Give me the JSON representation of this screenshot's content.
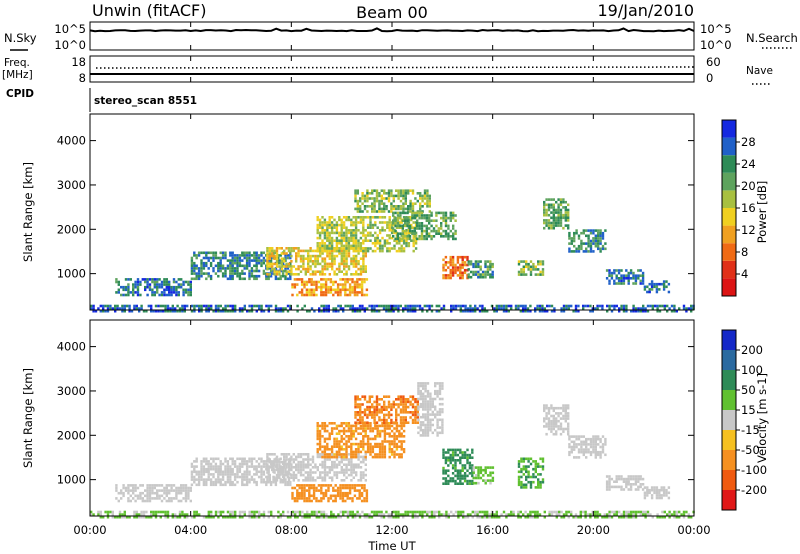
{
  "header": {
    "radar": "Unwin (fitACF)",
    "beam": "Beam 00",
    "date": "19/Jan/2010"
  },
  "top_panels": {
    "nsky_label": "N.Sky",
    "nsky_ticks": [
      "10^5",
      "10^0"
    ],
    "nsearch_label": "N.Search",
    "nsearch_ticks": [
      "10^5",
      "10^0"
    ],
    "freq_label": "Freq.",
    "freq_unit": "[MHz]",
    "freq_ticks": [
      "18",
      "8"
    ],
    "nave_label": "Nave",
    "nave_ticks": [
      "60",
      "0"
    ],
    "cpid_label": "CPID",
    "cpid_value": "stereo_scan 8551"
  },
  "colorbars": {
    "power": {
      "label": "Power [dB]",
      "ticks": [
        "28",
        "24",
        "20",
        "16",
        "12",
        "8",
        "4"
      ],
      "colors": [
        "#1428e0",
        "#2060c8",
        "#2e8b57",
        "#5ea35e",
        "#a8c040",
        "#f0d020",
        "#f0a020",
        "#f06a14",
        "#e03018",
        "#dc1414"
      ]
    },
    "velocity": {
      "label": "Velocity [m s-1]",
      "ticks": [
        "200",
        "100",
        "50",
        "15",
        "-15",
        "-50",
        "-100",
        "-200"
      ],
      "colors": [
        "#1428c8",
        "#2a6aa0",
        "#2e8b57",
        "#60c030",
        "#c8c8c8",
        "#f5c020",
        "#f59020",
        "#f05a10",
        "#e01818"
      ]
    }
  },
  "chart_data": [
    {
      "type": "heatmap",
      "name": "power",
      "ylabel": "Slant Range [km]",
      "xlabel": "",
      "x_ticks": [
        "00:00",
        "04:00",
        "08:00",
        "12:00",
        "16:00",
        "20:00",
        "00:00"
      ],
      "y_ticks": [
        "1000",
        "2000",
        "3000",
        "4000"
      ],
      "xlim": [
        0,
        24
      ],
      "ylim": [
        180,
        4600
      ],
      "regions": [
        {
          "t0": 1.0,
          "t1": 4.0,
          "r0": 500,
          "r1": 900,
          "v": 6
        },
        {
          "t0": 4.0,
          "t1": 8.0,
          "r0": 900,
          "r1": 1500,
          "v": 7
        },
        {
          "t0": 7.0,
          "t1": 11.0,
          "r0": 1000,
          "r1": 1600,
          "v": 16
        },
        {
          "t0": 8.0,
          "t1": 11.0,
          "r0": 500,
          "r1": 900,
          "v": 20
        },
        {
          "t0": 9.0,
          "t1": 13.0,
          "r0": 1500,
          "r1": 2300,
          "v": 14
        },
        {
          "t0": 10.5,
          "t1": 13.5,
          "r0": 2400,
          "r1": 2900,
          "v": 12
        },
        {
          "t0": 12.0,
          "t1": 14.5,
          "r0": 1800,
          "r1": 2400,
          "v": 10
        },
        {
          "t0": 14.0,
          "t1": 15.0,
          "r0": 900,
          "r1": 1400,
          "v": 22
        },
        {
          "t0": 15.0,
          "t1": 16.0,
          "r0": 900,
          "r1": 1300,
          "v": 9
        },
        {
          "t0": 17.0,
          "t1": 18.0,
          "r0": 1000,
          "r1": 1300,
          "v": 12
        },
        {
          "t0": 18.0,
          "t1": 19.0,
          "r0": 2000,
          "r1": 2700,
          "v": 10
        },
        {
          "t0": 19.0,
          "t1": 20.5,
          "r0": 1500,
          "r1": 2000,
          "v": 8
        },
        {
          "t0": 20.5,
          "t1": 22.0,
          "r0": 800,
          "r1": 1100,
          "v": 6
        },
        {
          "t0": 22.0,
          "t1": 23.0,
          "r0": 600,
          "r1": 850,
          "v": 6
        },
        {
          "t0": 0.0,
          "t1": 24.0,
          "r0": 180,
          "r1": 300,
          "v": 5
        }
      ]
    },
    {
      "type": "heatmap",
      "name": "velocity",
      "ylabel": "Slant Range [km]",
      "xlabel": "Time UT",
      "x_ticks": [
        "00:00",
        "04:00",
        "08:00",
        "12:00",
        "16:00",
        "20:00",
        "00:00"
      ],
      "y_ticks": [
        "1000",
        "2000",
        "3000",
        "4000"
      ],
      "xlim": [
        0,
        24
      ],
      "ylim": [
        180,
        4600
      ],
      "regions": [
        {
          "t0": 1.0,
          "t1": 4.0,
          "r0": 500,
          "r1": 900,
          "v": 0
        },
        {
          "t0": 4.0,
          "t1": 8.0,
          "r0": 900,
          "r1": 1500,
          "v": 0
        },
        {
          "t0": 7.0,
          "t1": 11.0,
          "r0": 1000,
          "r1": 1600,
          "v": 0
        },
        {
          "t0": 8.0,
          "t1": 11.0,
          "r0": 500,
          "r1": 900,
          "v": -60
        },
        {
          "t0": 9.0,
          "t1": 12.5,
          "r0": 1500,
          "r1": 2300,
          "v": -40
        },
        {
          "t0": 10.5,
          "t1": 13.0,
          "r0": 2300,
          "r1": 2900,
          "v": -70
        },
        {
          "t0": 13.0,
          "t1": 14.0,
          "r0": 2000,
          "r1": 3200,
          "v": 0
        },
        {
          "t0": 14.0,
          "t1": 15.2,
          "r0": 900,
          "r1": 1700,
          "v": 40
        },
        {
          "t0": 15.2,
          "t1": 16.0,
          "r0": 900,
          "r1": 1300,
          "v": 20
        },
        {
          "t0": 17.0,
          "t1": 18.0,
          "r0": 800,
          "r1": 1500,
          "v": 30
        },
        {
          "t0": 18.0,
          "t1": 19.0,
          "r0": 2000,
          "r1": 2700,
          "v": 0
        },
        {
          "t0": 19.0,
          "t1": 20.5,
          "r0": 1500,
          "r1": 2000,
          "v": 0
        },
        {
          "t0": 20.5,
          "t1": 22.0,
          "r0": 800,
          "r1": 1100,
          "v": 0
        },
        {
          "t0": 22.0,
          "t1": 23.0,
          "r0": 600,
          "r1": 850,
          "v": 0
        },
        {
          "t0": 0.0,
          "t1": 24.0,
          "r0": 180,
          "r1": 300,
          "v": 18
        }
      ]
    }
  ]
}
